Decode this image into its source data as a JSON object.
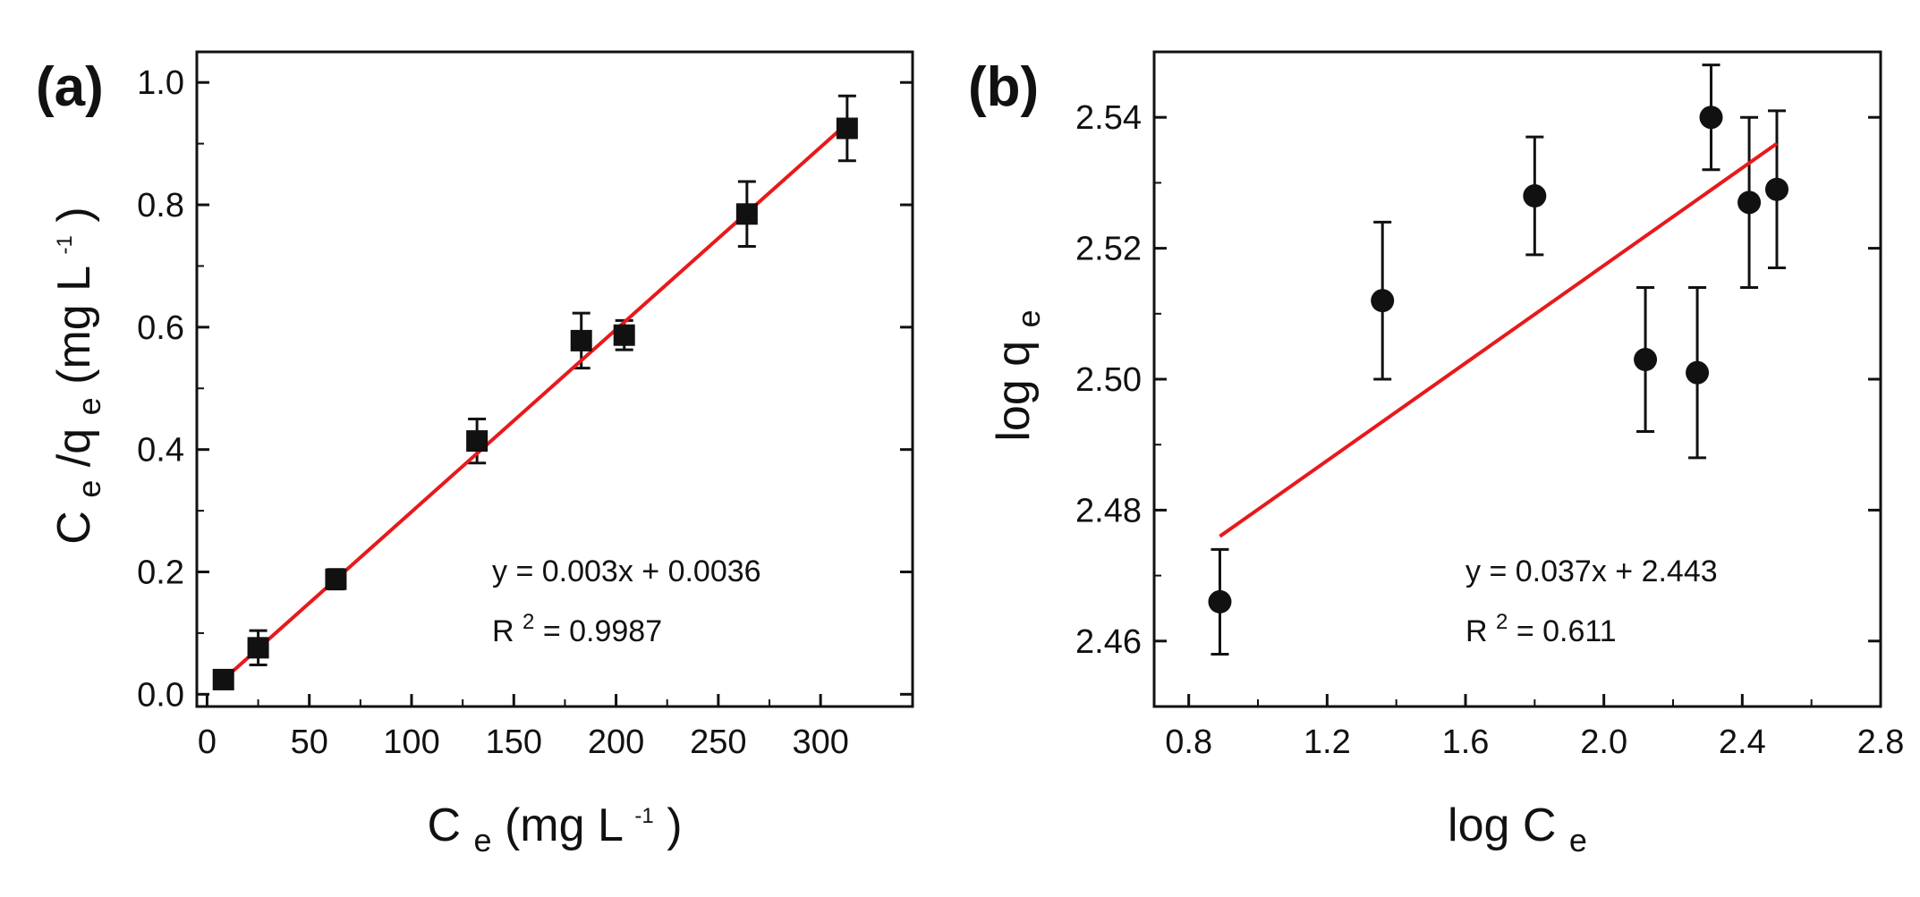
{
  "chart_data": [
    {
      "type": "scatter",
      "panel_label": "(a)",
      "title": "",
      "xlabel": {
        "base": "C",
        "sub": "e",
        "rest": " (mg L",
        "sup": "-1",
        "end": ")"
      },
      "ylabel": {
        "base1": "C",
        "sub1": "e",
        "slash": "/q",
        "sub2": "e",
        "rest": " (mg L",
        "sup": "-1",
        "end": ")"
      },
      "xlim": [
        -5,
        345
      ],
      "ylim": [
        -0.02,
        1.05
      ],
      "xticks": [
        0,
        50,
        100,
        150,
        200,
        250,
        300
      ],
      "xtick_labels": [
        "0",
        "50",
        "100",
        "150",
        "200",
        "250",
        "300"
      ],
      "yticks": [
        0.0,
        0.2,
        0.4,
        0.6,
        0.8,
        1.0
      ],
      "ytick_labels": [
        "0.0",
        "0.2",
        "0.4",
        "0.6",
        "0.8",
        "1.0"
      ],
      "marker": "square",
      "points": [
        {
          "x": 8,
          "y": 0.024,
          "err": 0.007
        },
        {
          "x": 25,
          "y": 0.076,
          "err": 0.028
        },
        {
          "x": 63,
          "y": 0.188,
          "err": 0.016
        },
        {
          "x": 132,
          "y": 0.414,
          "err": 0.036
        },
        {
          "x": 183,
          "y": 0.578,
          "err": 0.045
        },
        {
          "x": 204,
          "y": 0.587,
          "err": 0.024
        },
        {
          "x": 264,
          "y": 0.785,
          "err": 0.053
        },
        {
          "x": 313,
          "y": 0.925,
          "err": 0.053
        }
      ],
      "fit": {
        "color": "#e8191b",
        "x0": 8,
        "x1": 313,
        "y0": 0.024,
        "y1": 0.933
      },
      "annotation": {
        "equation": "y = 0.003x + 0.0036",
        "r2_prefix": "R",
        "r2_sup": "2",
        "r2_value": " = 0.9987"
      }
    },
    {
      "type": "scatter",
      "panel_label": "(b)",
      "title": "",
      "xlabel": {
        "base": "log C",
        "sub": "e"
      },
      "ylabel": {
        "base": "log q",
        "sub": "e"
      },
      "xlim": [
        0.7,
        2.8
      ],
      "ylim": [
        2.45,
        2.55
      ],
      "xticks": [
        0.8,
        1.2,
        1.6,
        2.0,
        2.4,
        2.8
      ],
      "xtick_labels": [
        "0.8",
        "1.2",
        "1.6",
        "2.0",
        "2.4",
        "2.8"
      ],
      "yticks": [
        2.46,
        2.48,
        2.5,
        2.52,
        2.54
      ],
      "ytick_labels": [
        "2.46",
        "2.48",
        "2.50",
        "2.52",
        "2.54"
      ],
      "marker": "circle",
      "points": [
        {
          "x": 0.89,
          "y": 2.466,
          "err": 0.008
        },
        {
          "x": 1.36,
          "y": 2.512,
          "err": 0.012
        },
        {
          "x": 1.8,
          "y": 2.528,
          "err": 0.009
        },
        {
          "x": 2.12,
          "y": 2.503,
          "err": 0.011
        },
        {
          "x": 2.27,
          "y": 2.501,
          "err": 0.013
        },
        {
          "x": 2.31,
          "y": 2.54,
          "err": 0.008
        },
        {
          "x": 2.42,
          "y": 2.527,
          "err": 0.013
        },
        {
          "x": 2.5,
          "y": 2.529,
          "err": 0.012
        }
      ],
      "fit": {
        "color": "#e8191b",
        "x0": 0.89,
        "x1": 2.5,
        "y0": 2.476,
        "y1": 2.536
      },
      "annotation": {
        "equation": "y = 0.037x + 2.443",
        "r2_prefix": "R",
        "r2_sup": "2",
        "r2_value": " = 0.611"
      }
    }
  ]
}
